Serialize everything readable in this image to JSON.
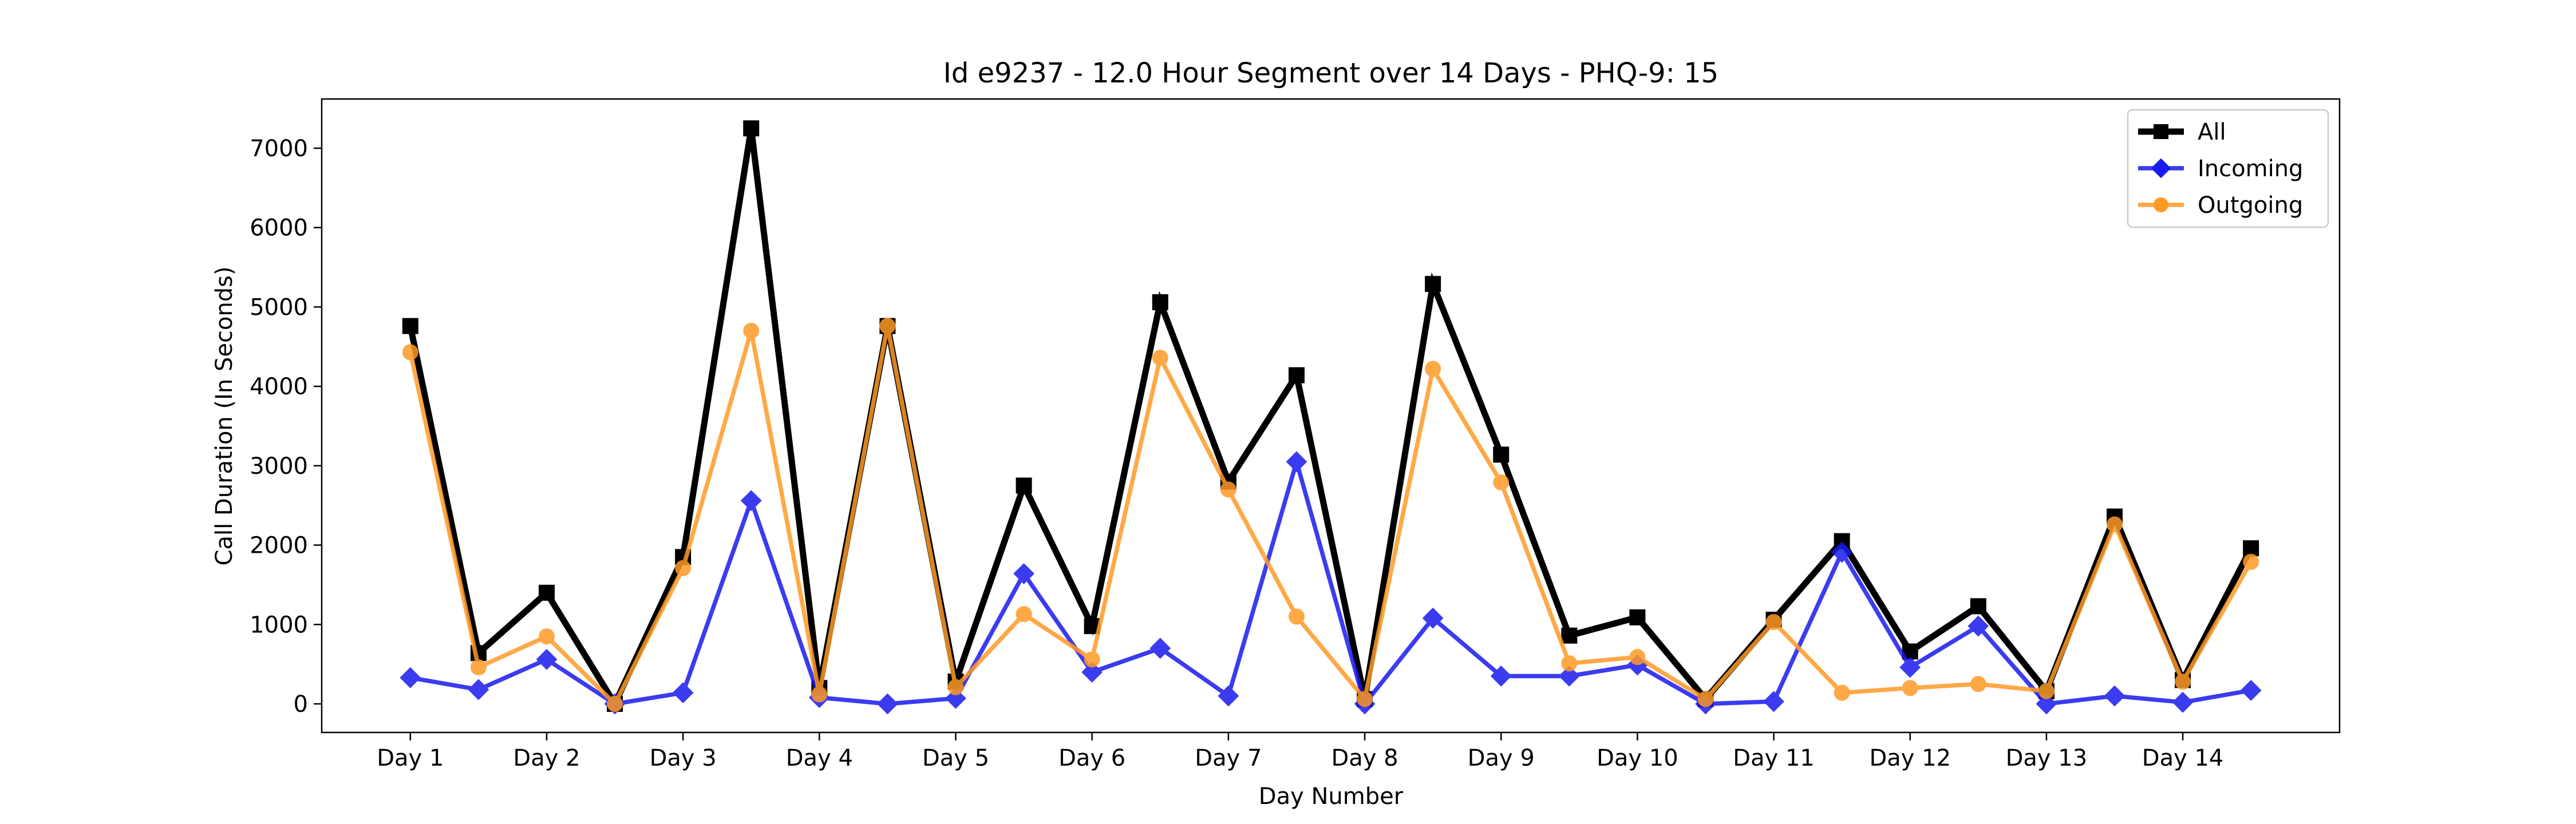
{
  "chart_data": {
    "type": "line",
    "title": "Id e9237 - 12.0 Hour Segment over 14 Days - PHQ-9: 15",
    "xlabel": "Day Number",
    "ylabel": "Call Duration (In Seconds)",
    "x_tick_labels": [
      "Day 1",
      "Day 2",
      "Day 3",
      "Day 4",
      "Day 5",
      "Day 6",
      "Day 7",
      "Day 8",
      "Day 9",
      "Day 10",
      "Day 11",
      "Day 12",
      "Day 13",
      "Day 14"
    ],
    "y_ticks": [
      0,
      1000,
      2000,
      3000,
      4000,
      5000,
      6000,
      7000
    ],
    "xlim": [
      0.35,
      15.15
    ],
    "ylim": [
      -360,
      7620
    ],
    "x": [
      1,
      1.5,
      2,
      2.5,
      3,
      3.5,
      4,
      4.5,
      5,
      5.5,
      6,
      6.5,
      7,
      7.5,
      8,
      8.5,
      9,
      9.5,
      10,
      10.5,
      11,
      11.5,
      12,
      12.5,
      13,
      13.5,
      14,
      14.5
    ],
    "legend_position": "top-right",
    "grid": false,
    "series": [
      {
        "name": "All",
        "color": "#000000",
        "marker": "square",
        "values": [
          4760,
          640,
          1400,
          0,
          1850,
          7250,
          200,
          4760,
          280,
          2750,
          980,
          5060,
          2800,
          4140,
          60,
          5290,
          3140,
          860,
          1090,
          60,
          1060,
          2050,
          660,
          1230,
          160,
          2360,
          300,
          1960
        ]
      },
      {
        "name": "Incoming",
        "color": "#1a1aee",
        "marker": "diamond",
        "values": [
          330,
          180,
          560,
          0,
          140,
          2560,
          80,
          0,
          70,
          1640,
          400,
          700,
          100,
          3050,
          0,
          1080,
          350,
          350,
          490,
          0,
          30,
          1910,
          460,
          980,
          0,
          100,
          20,
          170
        ]
      },
      {
        "name": "Outgoing",
        "color": "#ff9a26",
        "marker": "circle",
        "values": [
          4430,
          460,
          850,
          0,
          1710,
          4700,
          120,
          4760,
          210,
          1130,
          560,
          4360,
          2700,
          1100,
          60,
          4220,
          2790,
          510,
          590,
          60,
          1030,
          140,
          200,
          250,
          160,
          2260,
          280,
          1790
        ]
      }
    ]
  }
}
